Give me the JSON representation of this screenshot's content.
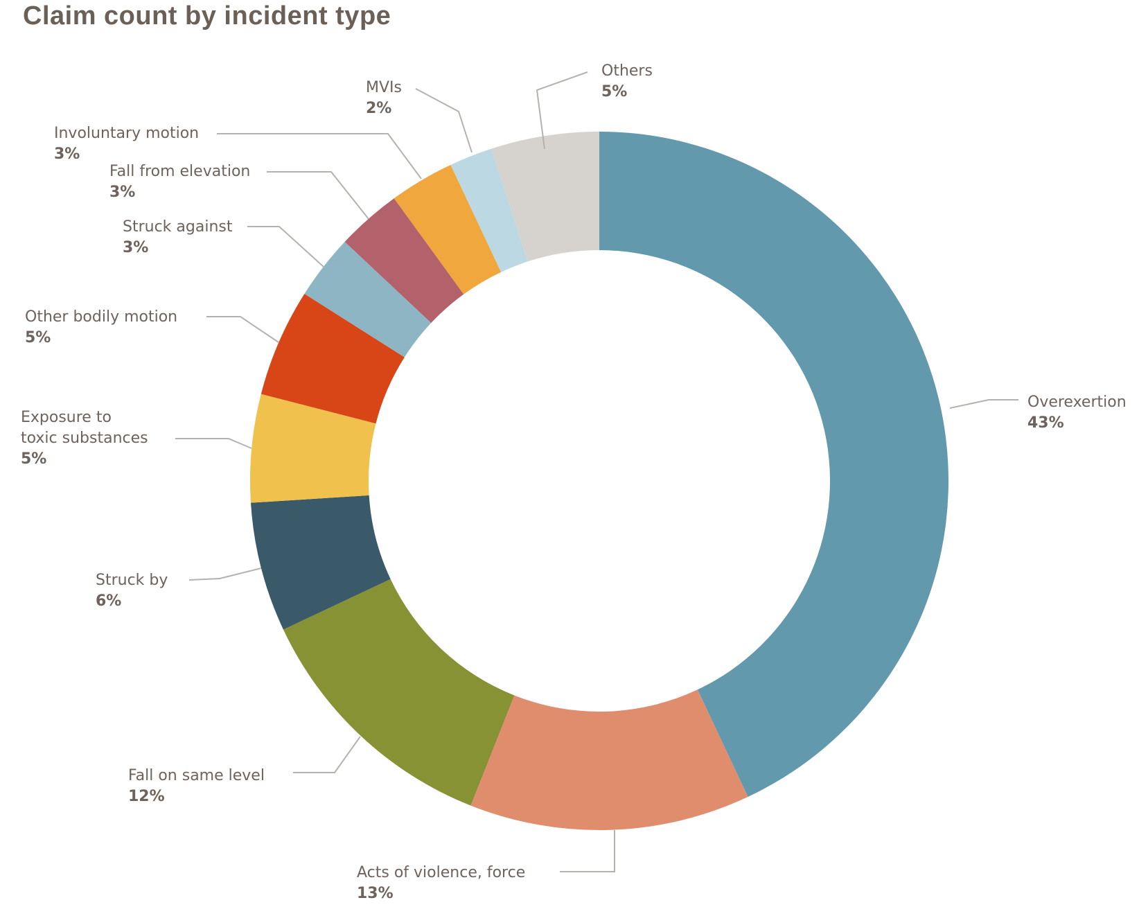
{
  "chart_data": {
    "type": "pie",
    "subtype": "donut",
    "title": "Claim count by incident type",
    "legend_position": "none",
    "labels_style": "outside callout labels with gray leader lines, each showing category name and bold percentage",
    "categories": [
      "Overexertion",
      "Acts of violence, force",
      "Fall on same level",
      "Struck by",
      "Exposure to toxic substances",
      "Other bodily motion",
      "Struck against",
      "Fall from elevation",
      "Involuntary motion",
      "MVIs",
      "Others"
    ],
    "values": [
      43,
      13,
      12,
      6,
      5,
      5,
      3,
      3,
      3,
      2,
      5
    ],
    "slices": [
      {
        "name": "Overexertion",
        "value": 43,
        "pct": "43%",
        "color": "#6299ad"
      },
      {
        "name": "Acts of violence, force",
        "value": 13,
        "pct": "13%",
        "color": "#e08d6e"
      },
      {
        "name": "Fall on same level",
        "value": 12,
        "pct": "12%",
        "color": "#869233"
      },
      {
        "name": "Struck by",
        "value": 6,
        "pct": "6%",
        "color": "#3a5a69"
      },
      {
        "name": "Exposure to toxic substances",
        "value": 5,
        "pct": "5%",
        "color": "#f1c14e"
      },
      {
        "name": "Other bodily motion",
        "value": 5,
        "pct": "5%",
        "color": "#d84516"
      },
      {
        "name": "Struck against",
        "value": 3,
        "pct": "3%",
        "color": "#8eb5c4"
      },
      {
        "name": "Fall from elevation",
        "value": 3,
        "pct": "3%",
        "color": "#b3616b"
      },
      {
        "name": "Involuntary motion",
        "value": 3,
        "pct": "3%",
        "color": "#efa73e"
      },
      {
        "name": "MVIs",
        "value": 2,
        "pct": "2%",
        "color": "#bcd8e3"
      },
      {
        "name": "Others",
        "value": 5,
        "pct": "5%",
        "color": "#d6d2cd"
      }
    ]
  },
  "colors": {
    "background": "#ffffff",
    "title_text": "#6a6058",
    "label_text": "#6e635c",
    "leader_line": "#b5b2ae"
  }
}
